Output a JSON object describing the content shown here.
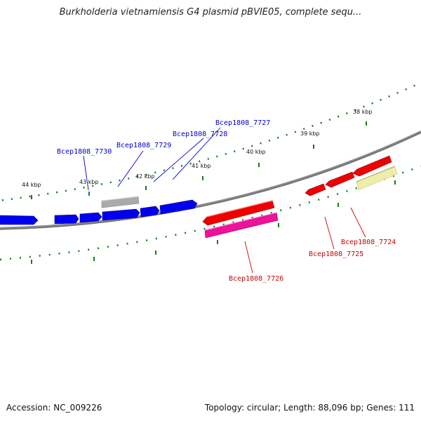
{
  "header": {
    "title": "Burkholderia vietnamiensis G4 plasmid pBVIE05, complete sequ..."
  },
  "footer": {
    "accession": "Accession: NC_009226",
    "summary": "Topology: circular; Length: 88,096 bp; Genes: 111"
  },
  "map": {
    "kbp_labels": [
      "38 kbp",
      "39 kbp",
      "40 kbp",
      "41 kbp",
      "42 kbp",
      "43 kbp",
      "44 kbp"
    ],
    "gene_labels_forward": [
      "Bcep1808_7727",
      "Bcep1808_7728",
      "Bcep1808_7729",
      "Bcep1808_7730"
    ],
    "gene_labels_reverse": [
      "Bcep1808_7724",
      "Bcep1808_7725",
      "Bcep1808_7726"
    ]
  },
  "colors": {
    "forward_gene": "#0000ee",
    "reverse_gene": "#ee0000",
    "pink_gene": "#ee1199",
    "gray_gene": "#aaaaaa",
    "yellow_gene": "#eeeeaa",
    "backbone": "#777777",
    "tick": "#1a7a1a",
    "forward_label": "#0000cc",
    "reverse_label": "#cc0000"
  }
}
